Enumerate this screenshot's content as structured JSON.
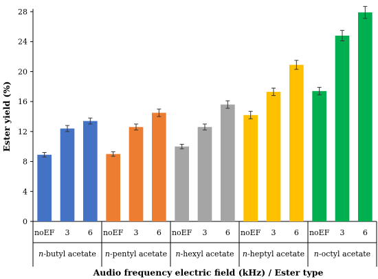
{
  "chart_data": {
    "type": "bar",
    "xlabel": "Audio frequency electric field (kHz) / Ester type",
    "ylabel": "Ester yield (%)",
    "ylim": [
      0,
      28
    ],
    "yticks": [
      0,
      4,
      8,
      12,
      16,
      20,
      24,
      28
    ],
    "grid": false,
    "legend": "none",
    "categories": [
      "noEF",
      "3",
      "6"
    ],
    "groups": [
      {
        "prefix": "n",
        "name": "-butyl acetate",
        "color": "#4472C4",
        "values": [
          8.9,
          12.4,
          13.4
        ],
        "errors": [
          0.3,
          0.4,
          0.4
        ]
      },
      {
        "prefix": "n",
        "name": "-pentyl acetate",
        "color": "#ED7D31",
        "values": [
          9.0,
          12.6,
          14.5
        ],
        "errors": [
          0.3,
          0.4,
          0.5
        ]
      },
      {
        "prefix": "n",
        "name": "-hexyl acetate",
        "color": "#A5A5A5",
        "values": [
          10.0,
          12.6,
          15.6
        ],
        "errors": [
          0.3,
          0.4,
          0.5
        ]
      },
      {
        "prefix": "n",
        "name": "-heptyl acetate",
        "color": "#FFC000",
        "values": [
          14.2,
          17.3,
          20.9
        ],
        "errors": [
          0.5,
          0.5,
          0.6
        ]
      },
      {
        "prefix": "n",
        "name": "-octyl acetate",
        "color": "#00B050",
        "values": [
          17.4,
          24.8,
          27.9
        ],
        "errors": [
          0.5,
          0.7,
          0.8
        ]
      }
    ]
  }
}
